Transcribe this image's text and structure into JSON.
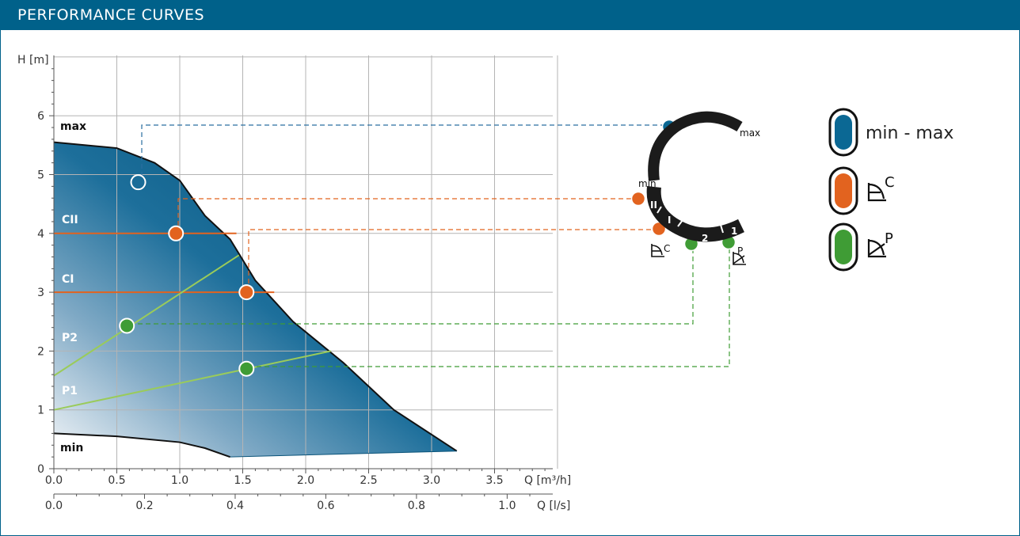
{
  "header": {
    "title": "PERFORMANCE CURVES"
  },
  "colors": {
    "brand": "#00618a",
    "blue": "#0b6894",
    "orange": "#e2631f",
    "green": "#3f9c35",
    "green_line": "#9acb5a",
    "grid": "#b4b4b4"
  },
  "chart_data": {
    "type": "line",
    "title": "",
    "ylabel": "H [m]",
    "xlabel": "Q [m³/h]",
    "xlabel_secondary": "Q [l/s]",
    "xlim": [
      0,
      4.0
    ],
    "ylim": [
      0,
      7.0
    ],
    "x_ticks": [
      "0.0",
      "0.5",
      "1.0",
      "1.5",
      "2.0",
      "2.5",
      "3.0",
      "3.5"
    ],
    "x_secondary_ticks": [
      "0.0",
      "0.2",
      "0.4",
      "0.6",
      "0.8",
      "1.0"
    ],
    "y_ticks": [
      "0",
      "1",
      "2",
      "3",
      "4",
      "5",
      "6"
    ],
    "series": [
      {
        "name": "max",
        "x": [
          0,
          0.5,
          0.8,
          1.0,
          1.1,
          1.2,
          1.4,
          1.6,
          1.9,
          2.3,
          2.7,
          3.2
        ],
        "y": [
          5.55,
          5.45,
          5.2,
          4.9,
          4.6,
          4.3,
          3.9,
          3.2,
          2.5,
          1.8,
          1.0,
          0.3
        ]
      },
      {
        "name": "min",
        "x": [
          0,
          0.5,
          1.0,
          1.2,
          1.4
        ],
        "y": [
          0.6,
          0.55,
          0.45,
          0.35,
          0.2
        ]
      },
      {
        "name": "CII",
        "x": [
          0,
          1.45
        ],
        "y": [
          4.0,
          4.0
        ]
      },
      {
        "name": "CI",
        "x": [
          0,
          1.75
        ],
        "y": [
          3.0,
          3.0
        ]
      },
      {
        "name": "P2",
        "x": [
          0,
          1.47
        ],
        "y": [
          1.58,
          3.63
        ]
      },
      {
        "name": "P1",
        "x": [
          0,
          2.2
        ],
        "y": [
          1.0,
          2.0
        ]
      }
    ],
    "markers": [
      {
        "series": "max",
        "x": 0.67,
        "y": 4.87,
        "color": "white"
      },
      {
        "series": "CII",
        "x": 0.97,
        "y": 4.0,
        "color": "orange"
      },
      {
        "series": "CI",
        "x": 1.53,
        "y": 3.0,
        "color": "orange"
      },
      {
        "series": "P2",
        "x": 0.58,
        "y": 2.43,
        "color": "green"
      },
      {
        "series": "P1",
        "x": 1.53,
        "y": 1.7,
        "color": "green"
      }
    ]
  },
  "dial": {
    "max_label": "max",
    "min_label": "min",
    "roman_II": "II",
    "roman_I": "I",
    "arabic_2": "2",
    "arabic_1": "1",
    "c_mark": "C",
    "p_mark": "P"
  },
  "legend": {
    "items": [
      {
        "color": "blue",
        "label": "min - max"
      },
      {
        "color": "orange",
        "label": "C"
      },
      {
        "color": "green",
        "label": "P"
      }
    ]
  }
}
